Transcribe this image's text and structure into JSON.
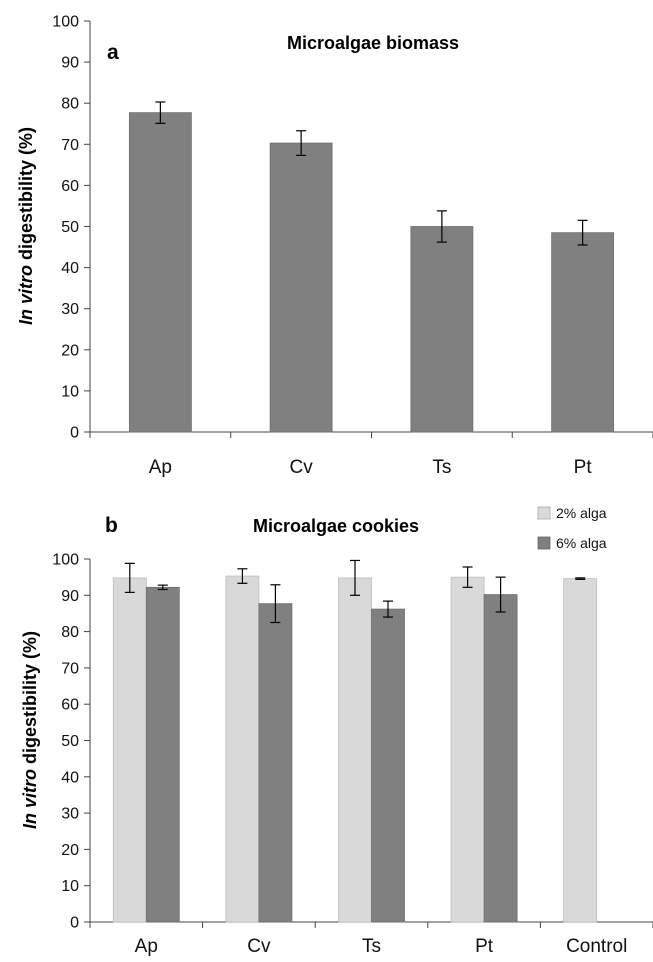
{
  "chart_data": [
    {
      "type": "bar",
      "panel_label": "a",
      "title": "Microalgae biomass",
      "ylabel_italic": "In vitro",
      "ylabel_rest": " digestibility (%)",
      "ylim": [
        0,
        100
      ],
      "yticks": [
        0,
        10,
        20,
        30,
        40,
        50,
        60,
        70,
        80,
        90,
        100
      ],
      "categories": [
        "Ap",
        "Cv",
        "Ts",
        "Pt"
      ],
      "series": [
        {
          "values": [
            77.7,
            70.3,
            50.0,
            48.5
          ],
          "errors": [
            2.6,
            3.0,
            3.8,
            3.0
          ],
          "color": "#808080"
        }
      ]
    },
    {
      "type": "bar",
      "panel_label": "b",
      "title": "Microalgae cookies",
      "ylabel_italic": "In vitro",
      "ylabel_rest": " digestibility (%)",
      "ylim": [
        0,
        100
      ],
      "yticks": [
        0,
        10,
        20,
        30,
        40,
        50,
        60,
        70,
        80,
        90,
        100
      ],
      "categories": [
        "Ap",
        "Cv",
        "Ts",
        "Pt",
        "Control"
      ],
      "legend_position": "top-right",
      "series": [
        {
          "name": "2% alga",
          "values": [
            94.8,
            95.3,
            94.8,
            95.0,
            94.6
          ],
          "errors": [
            4.0,
            2.0,
            4.8,
            2.8,
            0.2
          ],
          "color": "#d9d9d9"
        },
        {
          "name": "6% alga",
          "values": [
            92.2,
            87.7,
            86.2,
            90.2,
            null
          ],
          "errors": [
            0.6,
            5.2,
            2.2,
            4.8,
            null
          ],
          "color": "#808080"
        }
      ]
    }
  ]
}
